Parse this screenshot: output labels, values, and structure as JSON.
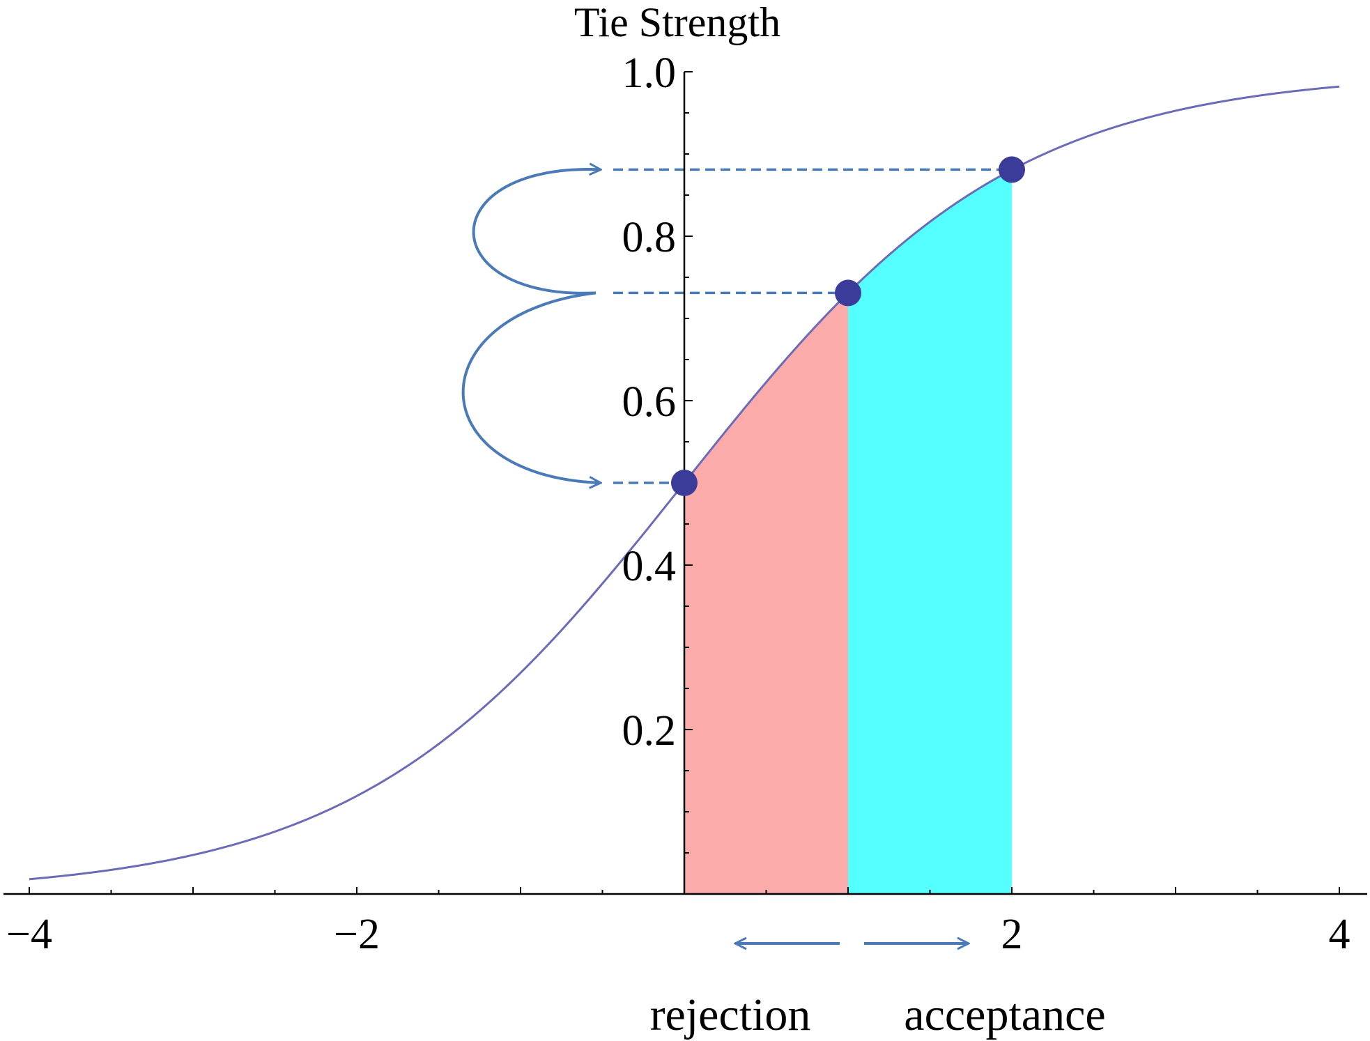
{
  "chart_data": {
    "type": "line",
    "title": "",
    "xlabel": "",
    "ylabel": "Tie Strength",
    "function": "logistic",
    "xlim": [
      -4,
      4
    ],
    "ylim": [
      0,
      1.0
    ],
    "x_ticks": [
      -4,
      -2,
      2,
      4
    ],
    "x_tick_labels": [
      "−4",
      "−2",
      "2",
      "4"
    ],
    "y_ticks": [
      0.2,
      0.4,
      0.6,
      0.8,
      1.0
    ],
    "y_tick_labels": [
      "0.2",
      "0.4",
      "0.6",
      "0.8",
      "1.0"
    ],
    "grid": false,
    "series": [
      {
        "color": "#6b6bb8",
        "x": [
          -4,
          -3.5,
          -3,
          -2.5,
          -2,
          -1.5,
          -1,
          -0.5,
          0,
          0.5,
          1,
          1.5,
          2,
          2.5,
          3,
          3.5,
          4
        ],
        "values": [
          0.018,
          0.029,
          0.047,
          0.076,
          0.119,
          0.182,
          0.269,
          0.378,
          0.5,
          0.622,
          0.731,
          0.818,
          0.881,
          0.924,
          0.953,
          0.971,
          0.982
        ]
      }
    ],
    "points": [
      {
        "x": 0,
        "y": 0.5
      },
      {
        "x": 1,
        "y": 0.731
      },
      {
        "x": 2,
        "y": 0.881
      }
    ],
    "shaded_regions": [
      {
        "x_from": 0,
        "x_to": 1,
        "color": "#fcabab"
      },
      {
        "x_from": 1,
        "x_to": 2,
        "color": "#55ffff"
      }
    ],
    "annotations": {
      "rejection": "rejection",
      "acceptance": "acceptance"
    },
    "colors": {
      "curve": "#6b6bb8",
      "point": "#3b3b9a",
      "arrow": "#4a7ab8",
      "axis": "#000000"
    }
  }
}
